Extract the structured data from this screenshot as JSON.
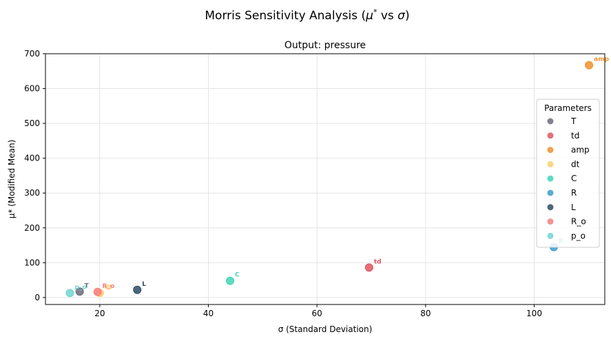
{
  "figure": {
    "suptitle": "Morris Sensitivity Analysis (",
    "suptitle_mu": "μ",
    "suptitle_star": "*",
    "suptitle_vs": " vs ",
    "suptitle_sigma": "σ",
    "suptitle_close": ")"
  },
  "chart_data": {
    "type": "scatter",
    "title": "Output: pressure",
    "xlabel": "σ (Standard Deviation)",
    "ylabel": "μ* (Modified Mean)",
    "xlim": [
      10,
      113
    ],
    "ylim": [
      -20,
      700
    ],
    "xticks": [
      20,
      40,
      60,
      80,
      100
    ],
    "yticks": [
      0,
      100,
      200,
      300,
      400,
      500,
      600,
      700
    ],
    "grid": true,
    "legend": {
      "title": "Parameters",
      "placement": "center-right"
    },
    "series": [
      {
        "name": "T",
        "color": "#6b6b7b",
        "x": 16.3,
        "y": 17
      },
      {
        "name": "td",
        "color": "#e05562",
        "x": 69.6,
        "y": 86
      },
      {
        "name": "amp",
        "color": "#f0922e",
        "x": 110.1,
        "y": 667
      },
      {
        "name": "dt",
        "color": "#fbcf6b",
        "x": 20.0,
        "y": 13
      },
      {
        "name": "C",
        "color": "#3fd6b5",
        "x": 44.0,
        "y": 48
      },
      {
        "name": "R",
        "color": "#3a9fc4",
        "x": 103.6,
        "y": 145
      },
      {
        "name": "L",
        "color": "#2e4e63",
        "x": 26.9,
        "y": 22
      },
      {
        "name": "R_o",
        "color": "#f77f7f",
        "x": 19.6,
        "y": 16
      },
      {
        "name": "p_o",
        "color": "#6fd6cf",
        "x": 14.5,
        "y": 13
      }
    ]
  }
}
